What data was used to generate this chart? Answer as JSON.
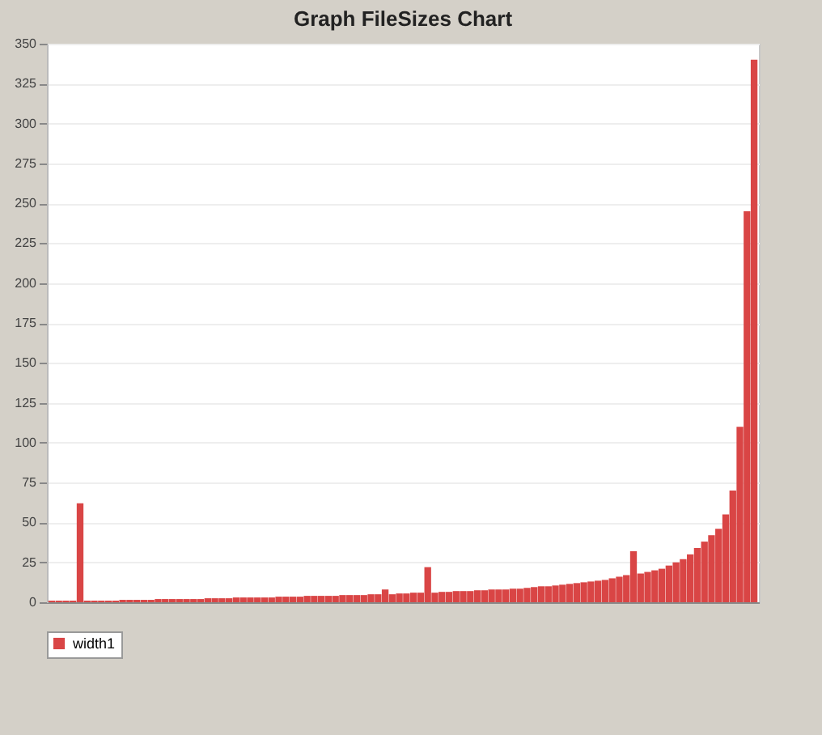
{
  "chart_data": {
    "type": "bar",
    "title": "Graph FileSizes Chart",
    "categories": [
      null,
      null,
      null,
      null,
      null,
      null,
      null,
      null,
      null,
      null,
      null,
      null,
      null,
      null,
      null,
      null,
      null,
      null,
      null,
      null,
      null,
      null,
      null,
      null,
      null,
      null,
      null,
      null,
      null,
      null,
      null,
      null,
      null,
      null,
      null,
      null,
      null,
      null,
      null,
      null,
      null,
      null,
      null,
      null,
      null,
      null,
      null,
      null,
      null,
      null,
      null,
      null,
      null,
      null,
      null,
      null,
      null,
      null,
      null,
      null,
      null,
      null,
      null,
      null,
      null,
      null,
      null,
      null,
      null,
      null,
      null,
      null,
      null,
      null,
      null,
      null,
      null,
      null,
      null,
      null,
      null,
      null,
      null,
      null,
      null,
      null,
      null,
      null,
      null,
      null,
      null,
      null,
      null,
      null,
      null,
      null,
      null,
      null,
      null,
      null
    ],
    "series": [
      {
        "name": "width1",
        "color": "#d94545",
        "values": [
          1,
          1,
          1,
          1,
          62,
          1,
          1,
          1,
          1,
          1,
          1.5,
          1.5,
          1.5,
          1.5,
          1.5,
          2,
          2,
          2,
          2,
          2,
          2,
          2,
          2.5,
          2.5,
          2.5,
          2.5,
          3,
          3,
          3,
          3,
          3,
          3,
          3.5,
          3.5,
          3.5,
          3.5,
          4,
          4,
          4,
          4,
          4,
          4.5,
          4.5,
          4.5,
          4.5,
          5,
          5,
          8,
          5,
          5.5,
          5.5,
          6,
          6,
          22,
          6,
          6.5,
          6.5,
          7,
          7,
          7,
          7.5,
          7.5,
          8,
          8,
          8,
          8.5,
          8.5,
          9,
          9.5,
          10,
          10,
          10.5,
          11,
          11.5,
          12,
          12.5,
          13,
          13.5,
          14,
          15,
          16,
          17,
          32,
          18,
          19,
          20,
          21,
          23,
          25,
          27,
          30,
          34,
          38,
          42,
          46,
          55,
          70,
          110,
          245,
          340
        ]
      }
    ],
    "ylim": [
      0,
      350
    ],
    "yticks": [
      0,
      25,
      50,
      75,
      100,
      125,
      150,
      175,
      200,
      225,
      250,
      275,
      300,
      325,
      350
    ],
    "grid": "y",
    "legend": "bottom",
    "tick_labels": "y"
  }
}
